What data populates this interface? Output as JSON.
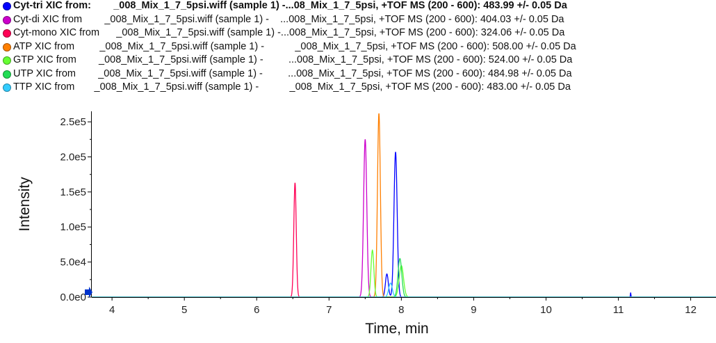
{
  "legend": [
    {
      "text": "Cyt-tri XIC from:        _008_Mix_1_7_5psi.wiff (sample 1) -...08_Mix_1_7_5psi, +TOF MS (200 - 600): 483.99 +/- 0.05 Da",
      "color": "#0000ff",
      "bold": true
    },
    {
      "text": "Cyt-di XIC from        _008_Mix_1_7_5psi.wiff (sample 1) -    ...008_Mix_1_7_5psi, +TOF MS (200 - 600): 404.03 +/- 0.05 Da",
      "color": "#cc00cc",
      "bold": false
    },
    {
      "text": "Cyt-mono XIC from      _008_Mix_1_7_5psi.wiff (sample 1) -...008_Mix_1_7_5psi, +TOF MS (200 - 600): 324.06 +/- 0.05 Da",
      "color": "#ff0055",
      "bold": false
    },
    {
      "text": "ATP XIC from         _008_Mix_1_7_5psi.wiff (sample 1) -           _008_Mix_1_7_5psi, +TOF MS (200 - 600): 508.00 +/- 0.05 Da",
      "color": "#ff7f00",
      "bold": false
    },
    {
      "text": "GTP XIC from        _008_Mix_1_7_5psi.wiff (sample 1) -         ...008_Mix_1_7_5psi, +TOF MS (200 - 600): 524.00 +/- 0.05 Da",
      "color": "#66ff33",
      "bold": false
    },
    {
      "text": "UTP XIC from        _008_Mix_1_7_5psi.wiff (sample 1) -         ...008_Mix_1_7_5psi, +TOF MS (200 - 600): 484.98 +/- 0.05 Da",
      "color": "#22dd55",
      "bold": false
    },
    {
      "text": "TTP XIC from       _008_Mix_1_7_5psi.wiff (sample 1) -           _008_Mix_1_7_5psi, +TOF MS (200 - 600): 483.00 +/- 0.05 Da",
      "color": "#33ccff",
      "bold": false
    }
  ],
  "chart_data": {
    "type": "line",
    "xlabel": "Time, min",
    "ylabel": "Intensity",
    "xlim": [
      3.72,
      12.35
    ],
    "ylim": [
      0,
      265000
    ],
    "x_ticks": [
      4,
      5,
      6,
      7,
      8,
      9,
      10,
      11,
      12
    ],
    "y_ticks": [
      {
        "value": 0,
        "label": "0.0e0"
      },
      {
        "value": 50000,
        "label": "5.0e4"
      },
      {
        "value": 100000,
        "label": "1.0e5"
      },
      {
        "value": 150000,
        "label": "1.5e5"
      },
      {
        "value": 200000,
        "label": "2.0e5"
      },
      {
        "value": 250000,
        "label": "2.5e5"
      }
    ],
    "grid": false,
    "legend_position": "top",
    "series": [
      {
        "name": "Cyt-tri",
        "color": "#0000ff",
        "peaks": [
          [
            7.92,
            207000,
            0.022
          ],
          [
            7.8,
            33000,
            0.02
          ],
          [
            11.17,
            6000,
            0.004
          ]
        ]
      },
      {
        "name": "Cyt-di",
        "color": "#cc00cc",
        "peaks": [
          [
            7.5,
            225000,
            0.022
          ]
        ]
      },
      {
        "name": "Cyt-mono",
        "color": "#ff0055",
        "peaks": [
          [
            6.53,
            163000,
            0.017
          ]
        ]
      },
      {
        "name": "ATP",
        "color": "#ff7f00",
        "peaks": [
          [
            7.69,
            262000,
            0.02
          ]
        ]
      },
      {
        "name": "GTP",
        "color": "#66ff33",
        "peaks": [
          [
            7.6,
            67000,
            0.02
          ],
          [
            8.0,
            45000,
            0.03
          ]
        ]
      },
      {
        "name": "UTP",
        "color": "#22dd55",
        "peaks": [
          [
            7.98,
            55000,
            0.026
          ]
        ]
      },
      {
        "name": "TTP",
        "color": "#33ccff",
        "peaks": [
          [
            7.85,
            20000,
            0.025
          ]
        ]
      }
    ]
  }
}
